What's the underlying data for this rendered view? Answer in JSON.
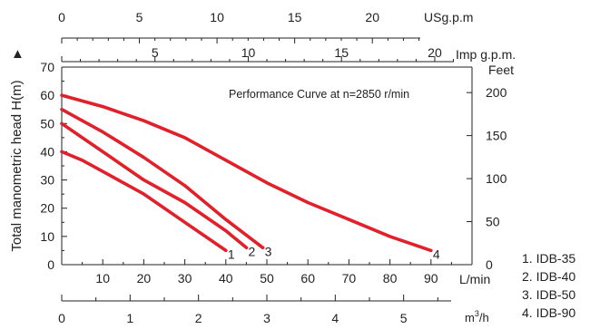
{
  "chart_data": {
    "type": "line",
    "title": "Performance Curve at n=2850 r/min",
    "ylabel": "Total manometric head H(m)",
    "y_arrow": "▲",
    "x_unit": "L/min",
    "x_unit_m3h_base": "m",
    "x_unit_m3h_exp": "3",
    "x_unit_m3h_tail": "/h",
    "usgpm_unit": "USg.p.m",
    "impgpm_unit": "Imp g.p.m.",
    "feet_unit": "Feet",
    "xlim": [
      0,
      100
    ],
    "ylim": [
      0,
      70
    ],
    "lpm_ticks": [
      "10",
      "20",
      "30",
      "40",
      "50",
      "60",
      "70",
      "80",
      "90"
    ],
    "y_ticks": [
      "0",
      "10",
      "20",
      "30",
      "40",
      "50",
      "60",
      "70"
    ],
    "feet_ticks": [
      "0",
      "50",
      "100",
      "150",
      "200"
    ],
    "usgpm_ticks": [
      "0",
      "5",
      "10",
      "15",
      "20"
    ],
    "impgpm_ticks": [
      "5",
      "10",
      "15",
      "20"
    ],
    "m3h_ticks": [
      "0",
      "1",
      "2",
      "3",
      "4",
      "5"
    ],
    "series": [
      {
        "name": "1. IDB-35",
        "label": "1",
        "color": "#e0202a",
        "x": [
          0,
          5,
          10,
          20,
          30,
          40
        ],
        "y": [
          40,
          37,
          33,
          25,
          15,
          5
        ]
      },
      {
        "name": "2. IDB-40",
        "label": "2",
        "color": "#e0202a",
        "x": [
          0,
          5,
          10,
          20,
          30,
          40,
          45
        ],
        "y": [
          50,
          45,
          40,
          30,
          22,
          12,
          6
        ]
      },
      {
        "name": "3. IDB-50",
        "label": "3",
        "color": "#e0202a",
        "x": [
          0,
          10,
          20,
          30,
          40,
          49
        ],
        "y": [
          55,
          47,
          38,
          28,
          16,
          6
        ]
      },
      {
        "name": "4. IDB-90",
        "label": "4",
        "color": "#e0202a",
        "x": [
          0,
          10,
          20,
          30,
          40,
          50,
          60,
          70,
          80,
          90
        ],
        "y": [
          60,
          56,
          51,
          45,
          37,
          29,
          22,
          16,
          10,
          5
        ]
      }
    ]
  }
}
